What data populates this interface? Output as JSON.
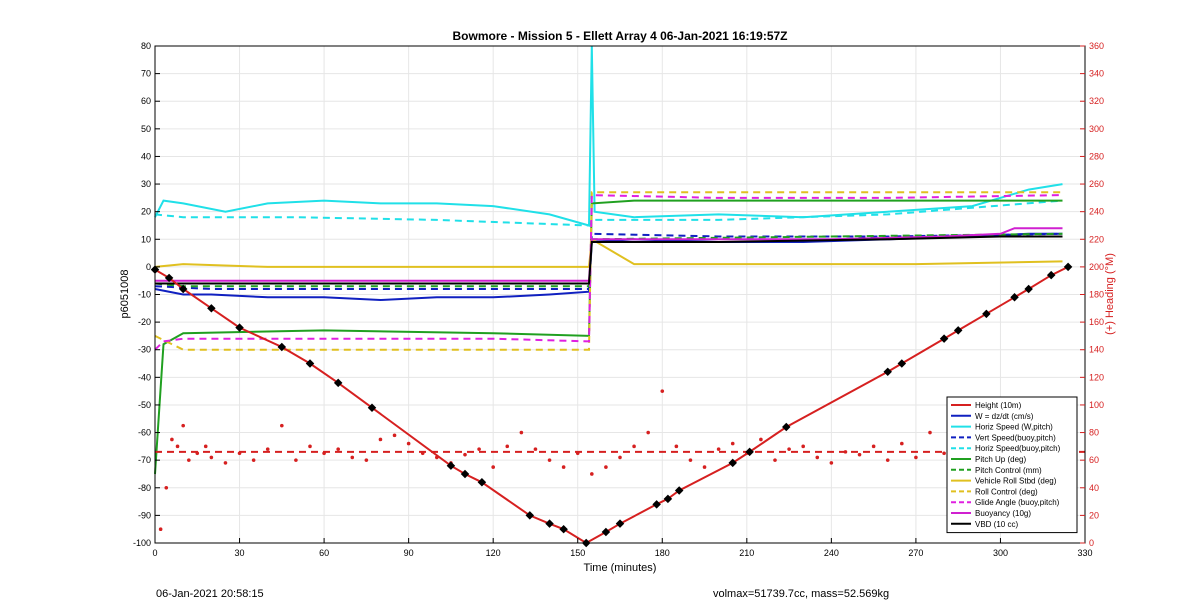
{
  "footer": {
    "timestamp": "06-Jan-2021 20:58:15",
    "volmax_mass": "volmax=51739.7cc, mass=52.569kg"
  },
  "chart_data": {
    "type": "line",
    "title": "Bowmore - Mission 5 - Ellett Array 4 06-Jan-2021 16:19:57Z",
    "xlabel": "Time (minutes)",
    "ylabel": "p6051008",
    "y2label": "(+) Heading (°M)",
    "xlim": [
      0,
      330
    ],
    "ylim": [
      -100,
      80
    ],
    "y2lim": [
      0,
      360
    ],
    "xticks": [
      0,
      30,
      60,
      90,
      120,
      150,
      180,
      210,
      240,
      270,
      300,
      330
    ],
    "yticks": [
      -100,
      -90,
      -80,
      -70,
      -60,
      -50,
      -40,
      -30,
      -20,
      -10,
      0,
      10,
      20,
      30,
      40,
      50,
      60,
      70,
      80
    ],
    "y2ticks": [
      0,
      20,
      40,
      60,
      80,
      100,
      120,
      140,
      160,
      180,
      200,
      220,
      240,
      260,
      280,
      300,
      320,
      340,
      360
    ],
    "grid": true,
    "legend_position": "bottom-right",
    "series": [
      {
        "name": "Height (10m)",
        "color": "#d62020",
        "style": "solid",
        "axis": "left",
        "x": [
          0,
          5,
          10,
          20,
          30,
          45,
          55,
          65,
          77,
          105,
          110,
          116,
          133,
          140,
          145,
          153,
          160,
          165,
          178,
          182,
          186,
          205,
          211,
          224,
          260,
          265,
          280,
          285,
          295,
          305,
          310,
          318,
          324
        ],
        "y": [
          -1,
          -4,
          -8,
          -15,
          -22,
          -29,
          -35,
          -42,
          -51,
          -72,
          -75,
          -78,
          -90,
          -93,
          -95,
          -100,
          -96,
          -93,
          -86,
          -84,
          -81,
          -71,
          -67,
          -58,
          -38,
          -35,
          -26,
          -23,
          -17,
          -11,
          -8,
          -3,
          0
        ]
      },
      {
        "name": "W = dz/dt (cm/s)",
        "color": "#1020c0",
        "style": "solid",
        "axis": "left",
        "x": [
          0,
          10,
          20,
          40,
          60,
          80,
          100,
          120,
          140,
          154,
          155,
          170,
          200,
          230,
          260,
          290,
          310,
          322
        ],
        "y": [
          -8,
          -10,
          -10,
          -11,
          -11,
          -12,
          -11,
          -11,
          -10,
          -9,
          9,
          10,
          9,
          9,
          10,
          11,
          12,
          12
        ]
      },
      {
        "name": "Horiz Speed (W,pitch)",
        "color": "#20e0e8",
        "style": "solid",
        "axis": "left",
        "x": [
          0,
          3,
          10,
          25,
          40,
          60,
          80,
          100,
          120,
          140,
          154,
          155,
          156,
          170,
          200,
          230,
          260,
          290,
          310,
          322
        ],
        "y": [
          18,
          24,
          23,
          20,
          23,
          24,
          23,
          23,
          22,
          19,
          15,
          80,
          20,
          18,
          19,
          18,
          20,
          22,
          28,
          30
        ]
      },
      {
        "name": "Vert Speed(buoy,pitch)",
        "color": "#1020c0",
        "style": "dashed",
        "axis": "left",
        "x": [
          0,
          20,
          60,
          100,
          140,
          154,
          155,
          200,
          260,
          322
        ],
        "y": [
          -7,
          -8,
          -8,
          -8,
          -8,
          -8,
          12,
          11,
          11,
          12
        ]
      },
      {
        "name": "Horiz Speed(buoy,pitch)",
        "color": "#20e0e8",
        "style": "dashed",
        "axis": "left",
        "x": [
          0,
          10,
          50,
          100,
          154,
          155,
          200,
          260,
          322
        ],
        "y": [
          19,
          18,
          18,
          17,
          15,
          17,
          17,
          19,
          24
        ]
      },
      {
        "name": "Pitch Up (deg)",
        "color": "#20a020",
        "style": "solid",
        "axis": "left",
        "x": [
          0,
          3,
          10,
          60,
          120,
          154,
          155,
          170,
          220,
          270,
          322
        ],
        "y": [
          -75,
          -28,
          -24,
          -23,
          -24,
          -25,
          23,
          24,
          24,
          24,
          24
        ]
      },
      {
        "name": "Pitch Control (mm)",
        "color": "#20a020",
        "style": "dashed",
        "axis": "left",
        "x": [
          0,
          10,
          154,
          155,
          322
        ],
        "y": [
          -6,
          -7,
          -7,
          10,
          12
        ]
      },
      {
        "name": "Vehicle Roll Stbd (deg)",
        "color": "#e0c020",
        "style": "solid",
        "axis": "left",
        "x": [
          0,
          10,
          40,
          80,
          120,
          154,
          155,
          170,
          220,
          270,
          322
        ],
        "y": [
          0,
          1,
          0,
          0,
          0,
          0,
          10,
          1,
          1,
          1,
          2
        ]
      },
      {
        "name": "Roll Control (deg)",
        "color": "#e0c020",
        "style": "dashed",
        "axis": "left",
        "x": [
          0,
          10,
          154,
          155,
          322
        ],
        "y": [
          -25,
          -30,
          -30,
          27,
          27
        ]
      },
      {
        "name": "Glide Angle (buoy,pitch)",
        "color": "#e020e0",
        "style": "dashed",
        "axis": "left",
        "x": [
          0,
          3,
          10,
          60,
          120,
          154,
          155,
          200,
          260,
          322
        ],
        "y": [
          -30,
          -27,
          -26,
          -26,
          -26,
          -27,
          26,
          25,
          25,
          26
        ]
      },
      {
        "name": "Buoyancy (10g)",
        "color": "#d020d0",
        "style": "solid",
        "axis": "left",
        "x": [
          0,
          154,
          155,
          200,
          240,
          280,
          300,
          305,
          322
        ],
        "y": [
          -5,
          -5,
          10,
          10,
          10,
          11,
          12,
          14,
          14
        ]
      },
      {
        "name": "VBD (10 cc)",
        "color": "#000000",
        "style": "solid",
        "axis": "left",
        "x": [
          0,
          154,
          155,
          200,
          260,
          300,
          322
        ],
        "y": [
          -6,
          -6,
          9,
          9,
          10,
          11,
          11
        ]
      },
      {
        "name": "",
        "color": "#d62020",
        "style": "dots",
        "axis": "right",
        "x": [
          2,
          4,
          6,
          8,
          10,
          12,
          15,
          18,
          20,
          25,
          30,
          35,
          40,
          45,
          50,
          55,
          60,
          65,
          70,
          75,
          80,
          85,
          90,
          95,
          100,
          105,
          110,
          115,
          120,
          125,
          130,
          135,
          140,
          145,
          150,
          155,
          160,
          165,
          170,
          175,
          180,
          185,
          190,
          195,
          200,
          205,
          210,
          215,
          220,
          225,
          230,
          235,
          240,
          245,
          250,
          255,
          260,
          265,
          270,
          275,
          280,
          285,
          290,
          295,
          300,
          305,
          310,
          315,
          320
        ],
        "y": [
          10,
          40,
          75,
          70,
          85,
          60,
          65,
          70,
          62,
          58,
          65,
          60,
          68,
          85,
          60,
          70,
          65,
          68,
          62,
          60,
          75,
          78,
          72,
          65,
          62,
          58,
          64,
          68,
          55,
          70,
          80,
          68,
          60,
          55,
          65,
          50,
          55,
          62,
          70,
          80,
          110,
          70,
          60,
          55,
          68,
          72,
          65,
          75,
          60,
          68,
          70,
          62,
          58,
          66,
          64,
          70,
          60,
          72,
          62,
          80,
          65,
          58,
          70,
          64,
          62,
          68,
          70,
          62,
          60
        ]
      },
      {
        "name": "",
        "color": "#d62020",
        "style": "dashed",
        "axis": "right",
        "x": [
          0,
          330
        ],
        "y": [
          66,
          66
        ]
      }
    ]
  }
}
